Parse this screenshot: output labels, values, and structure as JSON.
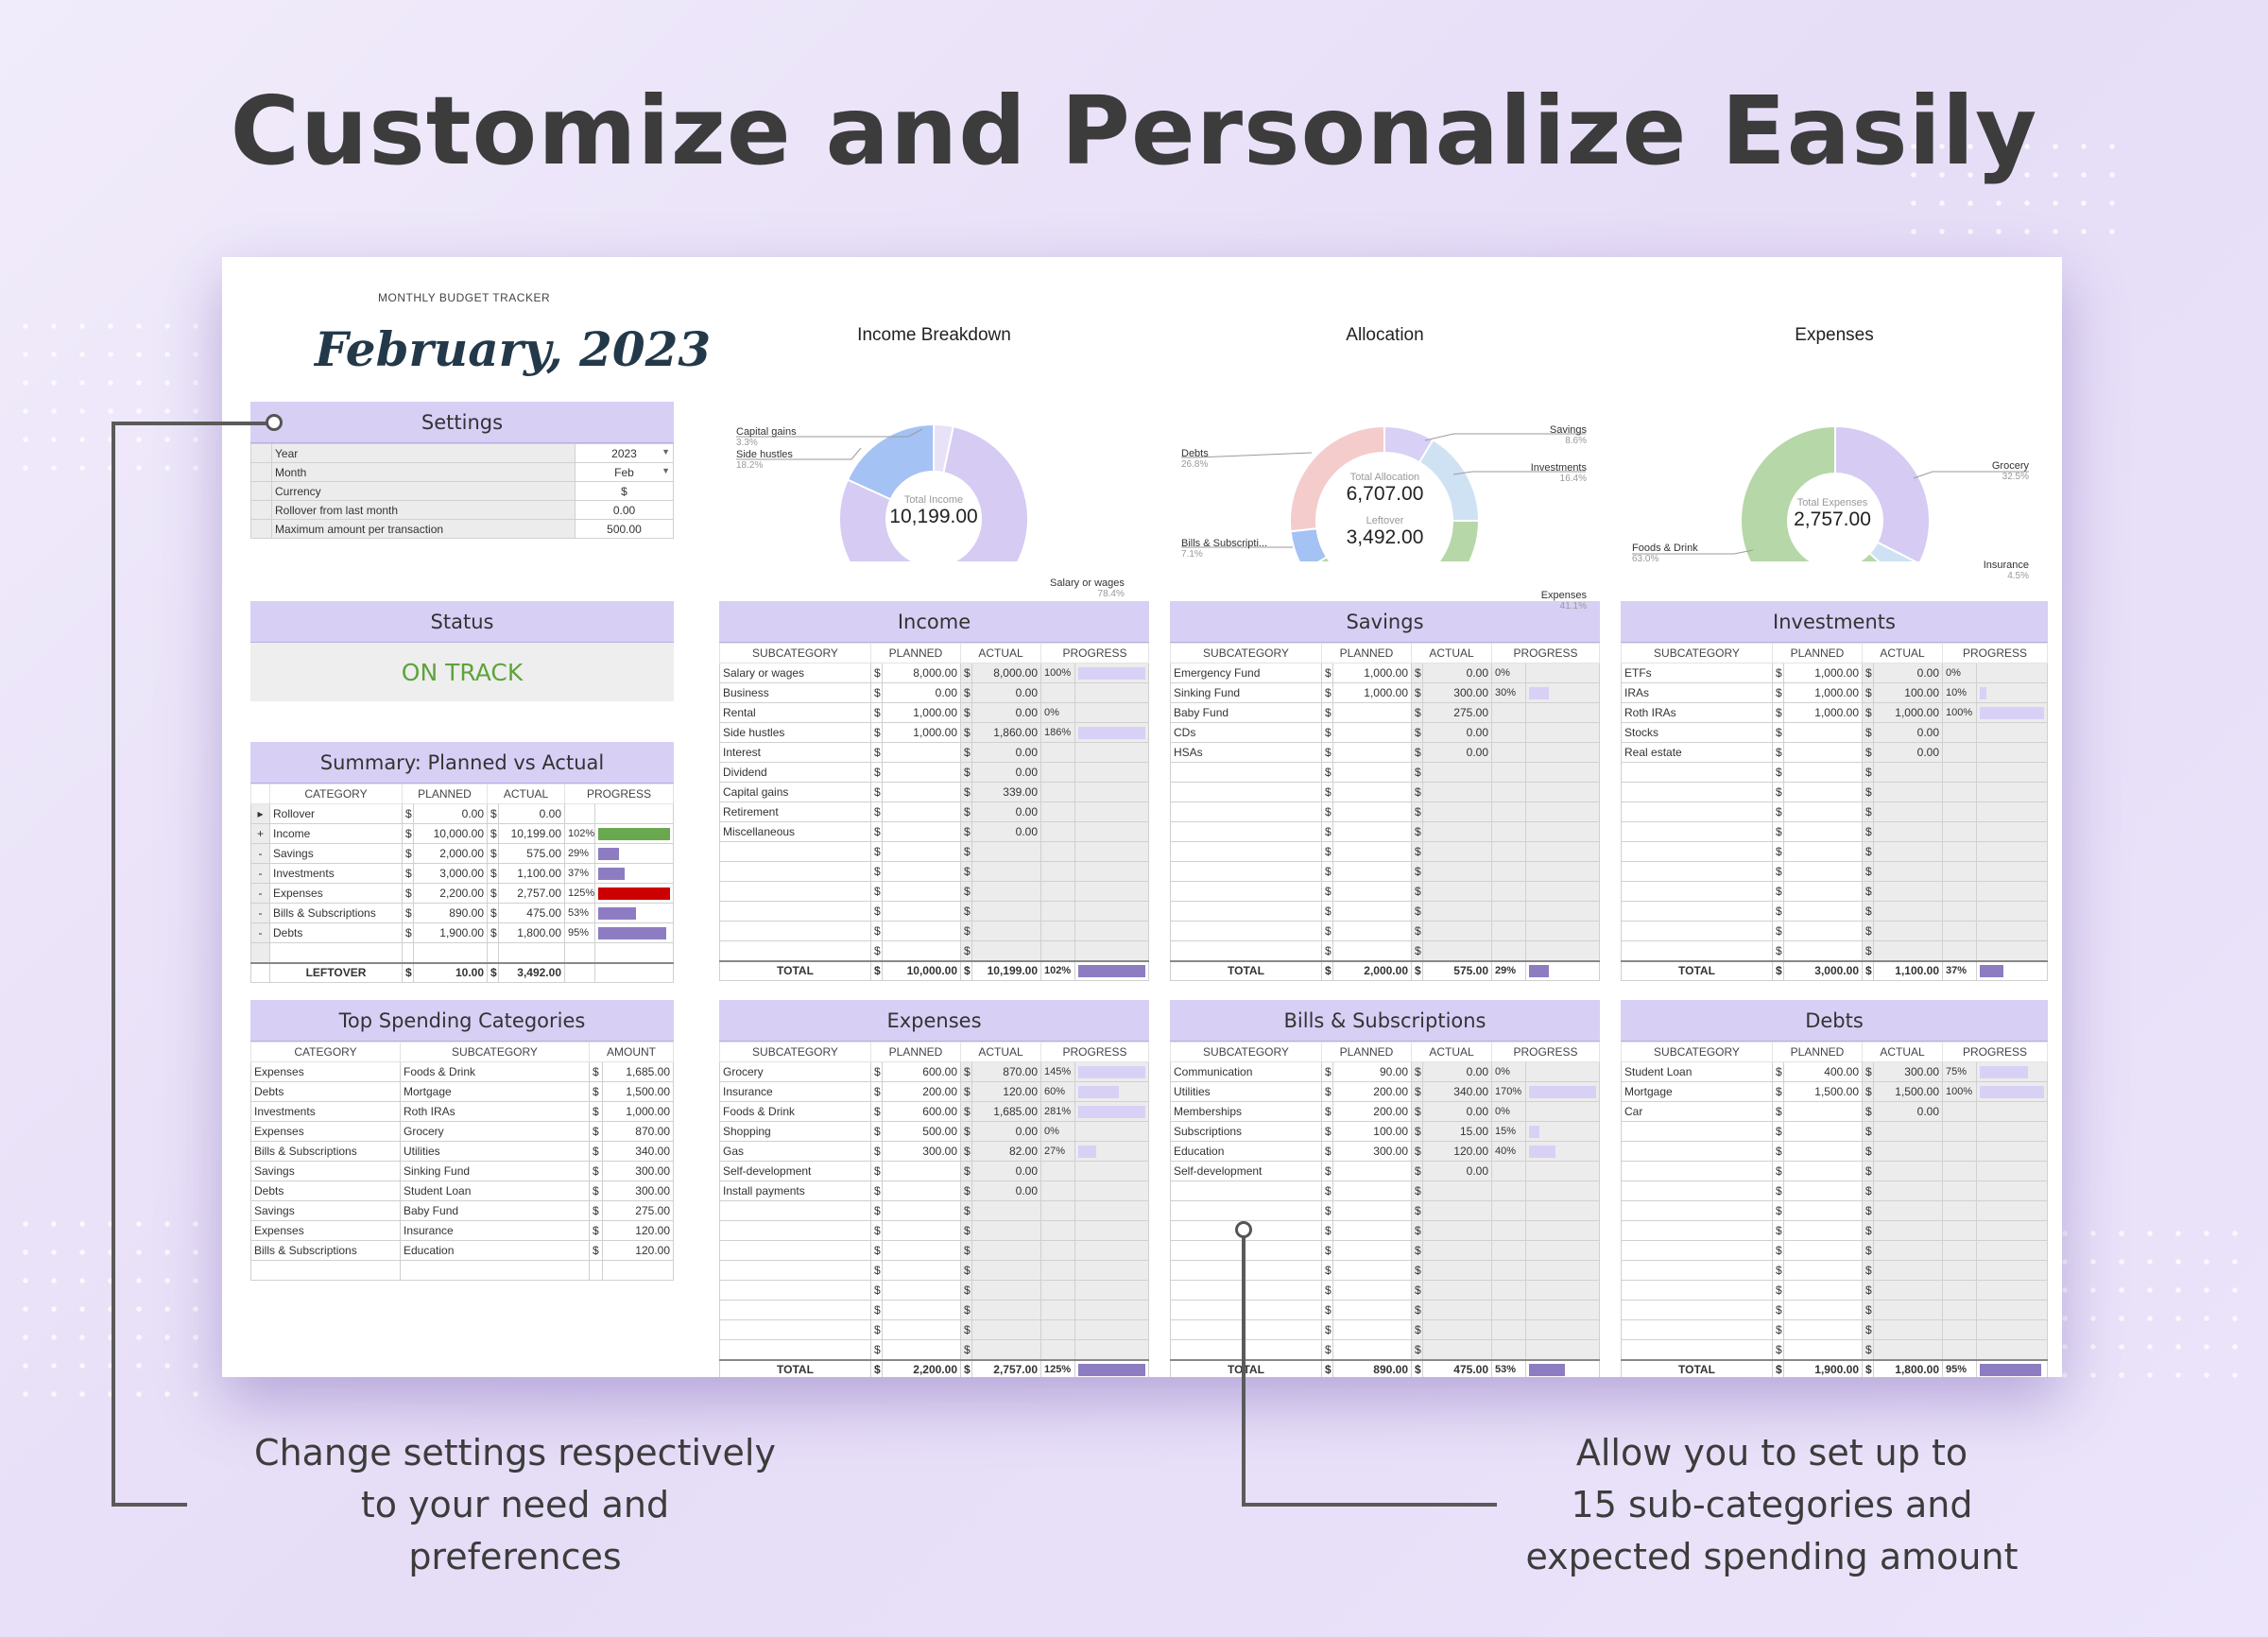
{
  "headline": "Customize and Personalize Easily",
  "tracker_label": "MONTHLY BUDGET TRACKER",
  "month_title": "February, 2023",
  "settings": {
    "title": "Settings",
    "rows": [
      {
        "label": "Year",
        "value": "2023",
        "dropdown": true
      },
      {
        "label": "Month",
        "value": "Feb",
        "dropdown": true
      },
      {
        "label": "Currency",
        "value": "$"
      },
      {
        "label": "Rollover from last month",
        "value": "0.00"
      },
      {
        "label": "Maximum amount per transaction",
        "value": "500.00"
      }
    ]
  },
  "status": {
    "title": "Status",
    "value": "ON TRACK"
  },
  "summary": {
    "title": "Summary: Planned vs Actual",
    "headers": [
      "CATEGORY",
      "PLANNED",
      "ACTUAL",
      "PROGRESS"
    ],
    "rows": [
      {
        "mark": "▸",
        "category": "Rollover",
        "planned": "0.00",
        "actual": "0.00",
        "pct": "",
        "fill": 0,
        "color": ""
      },
      {
        "mark": "+",
        "category": "Income",
        "planned": "10,000.00",
        "actual": "10,199.00",
        "pct": "102%",
        "fill": 1.0,
        "color": "#6aa84f"
      },
      {
        "mark": "-",
        "category": "Savings",
        "planned": "2,000.00",
        "actual": "575.00",
        "pct": "29%",
        "fill": 0.29,
        "color": "#8e7cc3"
      },
      {
        "mark": "-",
        "category": "Investments",
        "planned": "3,000.00",
        "actual": "1,100.00",
        "pct": "37%",
        "fill": 0.37,
        "color": "#8e7cc3"
      },
      {
        "mark": "-",
        "category": "Expenses",
        "planned": "2,200.00",
        "actual": "2,757.00",
        "pct": "125%",
        "fill": 1.0,
        "color": "#cc0000"
      },
      {
        "mark": "-",
        "category": "Bills & Subscriptions",
        "planned": "890.00",
        "actual": "475.00",
        "pct": "53%",
        "fill": 0.53,
        "color": "#8e7cc3"
      },
      {
        "mark": "-",
        "category": "Debts",
        "planned": "1,900.00",
        "actual": "1,800.00",
        "pct": "95%",
        "fill": 0.95,
        "color": "#8e7cc3"
      }
    ],
    "leftover_label": "LEFTOVER",
    "leftover_planned": "10.00",
    "leftover_actual": "3,492.00"
  },
  "top_spending": {
    "title": "Top Spending Categories",
    "headers": [
      "CATEGORY",
      "SUBCATEGORY",
      "AMOUNT"
    ],
    "rows": [
      {
        "category": "Expenses",
        "sub": "Foods & Drink",
        "amount": "1,685.00"
      },
      {
        "category": "Debts",
        "sub": "Mortgage",
        "amount": "1,500.00"
      },
      {
        "category": "Investments",
        "sub": "Roth IRAs",
        "amount": "1,000.00"
      },
      {
        "category": "Expenses",
        "sub": "Grocery",
        "amount": "870.00"
      },
      {
        "category": "Bills & Subscriptions",
        "sub": "Utilities",
        "amount": "340.00"
      },
      {
        "category": "Savings",
        "sub": "Sinking Fund",
        "amount": "300.00"
      },
      {
        "category": "Debts",
        "sub": "Student Loan",
        "amount": "300.00"
      },
      {
        "category": "Savings",
        "sub": "Baby Fund",
        "amount": "275.00"
      },
      {
        "category": "Expenses",
        "sub": "Insurance",
        "amount": "120.00"
      },
      {
        "category": "Bills & Subscriptions",
        "sub": "Education",
        "amount": "120.00"
      }
    ]
  },
  "currency_symbol": "$",
  "income": {
    "title": "Income",
    "headers": [
      "SUBCATEGORY",
      "PLANNED",
      "ACTUAL",
      "PROGRESS"
    ],
    "rows": [
      {
        "name": "Salary or wages",
        "planned": "8,000.00",
        "actual": "8,000.00",
        "pct": "100%",
        "fill": 1.0
      },
      {
        "name": "Business",
        "planned": "0.00",
        "actual": "0.00",
        "pct": "",
        "fill": 0
      },
      {
        "name": "Rental",
        "planned": "1,000.00",
        "actual": "0.00",
        "pct": "0%",
        "fill": 0
      },
      {
        "name": "Side hustles",
        "planned": "1,000.00",
        "actual": "1,860.00",
        "pct": "186%",
        "fill": 1.0
      },
      {
        "name": "Interest",
        "planned": "",
        "actual": "0.00",
        "pct": "",
        "fill": 0
      },
      {
        "name": "Dividend",
        "planned": "",
        "actual": "0.00",
        "pct": "",
        "fill": 0
      },
      {
        "name": "Capital gains",
        "planned": "",
        "actual": "339.00",
        "pct": "",
        "fill": 0
      },
      {
        "name": "Retirement",
        "planned": "",
        "actual": "0.00",
        "pct": "",
        "fill": 0
      },
      {
        "name": "Miscellaneous",
        "planned": "",
        "actual": "0.00",
        "pct": "",
        "fill": 0
      }
    ],
    "total": {
      "label": "TOTAL",
      "planned": "10,000.00",
      "actual": "10,199.00",
      "pct": "102%",
      "fill": 1.0
    }
  },
  "savings": {
    "title": "Savings",
    "headers": [
      "SUBCATEGORY",
      "PLANNED",
      "ACTUAL",
      "PROGRESS"
    ],
    "rows": [
      {
        "name": "Emergency Fund",
        "planned": "1,000.00",
        "actual": "0.00",
        "pct": "0%",
        "fill": 0
      },
      {
        "name": "Sinking Fund",
        "planned": "1,000.00",
        "actual": "300.00",
        "pct": "30%",
        "fill": 0.3
      },
      {
        "name": "Baby Fund",
        "planned": "",
        "actual": "275.00",
        "pct": "",
        "fill": 0
      },
      {
        "name": "CDs",
        "planned": "",
        "actual": "0.00",
        "pct": "",
        "fill": 0
      },
      {
        "name": "HSAs",
        "planned": "",
        "actual": "0.00",
        "pct": "",
        "fill": 0
      }
    ],
    "total": {
      "label": "TOTAL",
      "planned": "2,000.00",
      "actual": "575.00",
      "pct": "29%",
      "fill": 0.29
    }
  },
  "investments": {
    "title": "Investments",
    "headers": [
      "SUBCATEGORY",
      "PLANNED",
      "ACTUAL",
      "PROGRESS"
    ],
    "rows": [
      {
        "name": "ETFs",
        "planned": "1,000.00",
        "actual": "0.00",
        "pct": "0%",
        "fill": 0
      },
      {
        "name": "IRAs",
        "planned": "1,000.00",
        "actual": "100.00",
        "pct": "10%",
        "fill": 0.1
      },
      {
        "name": "Roth IRAs",
        "planned": "1,000.00",
        "actual": "1,000.00",
        "pct": "100%",
        "fill": 1.0
      },
      {
        "name": "Stocks",
        "planned": "",
        "actual": "0.00",
        "pct": "",
        "fill": 0
      },
      {
        "name": "Real estate",
        "planned": "",
        "actual": "0.00",
        "pct": "",
        "fill": 0
      }
    ],
    "total": {
      "label": "TOTAL",
      "planned": "3,000.00",
      "actual": "1,100.00",
      "pct": "37%",
      "fill": 0.37
    }
  },
  "expenses": {
    "title": "Expenses",
    "headers": [
      "SUBCATEGORY",
      "PLANNED",
      "ACTUAL",
      "PROGRESS"
    ],
    "rows": [
      {
        "name": "Grocery",
        "planned": "600.00",
        "actual": "870.00",
        "pct": "145%",
        "fill": 1.0
      },
      {
        "name": "Insurance",
        "planned": "200.00",
        "actual": "120.00",
        "pct": "60%",
        "fill": 0.6
      },
      {
        "name": "Foods & Drink",
        "planned": "600.00",
        "actual": "1,685.00",
        "pct": "281%",
        "fill": 1.0
      },
      {
        "name": "Shopping",
        "planned": "500.00",
        "actual": "0.00",
        "pct": "0%",
        "fill": 0
      },
      {
        "name": "Gas",
        "planned": "300.00",
        "actual": "82.00",
        "pct": "27%",
        "fill": 0.27
      },
      {
        "name": "Self-development",
        "planned": "",
        "actual": "0.00",
        "pct": "",
        "fill": 0
      },
      {
        "name": "Install payments",
        "planned": "",
        "actual": "0.00",
        "pct": "",
        "fill": 0
      }
    ],
    "total": {
      "label": "TOTAL",
      "planned": "2,200.00",
      "actual": "2,757.00",
      "pct": "125%",
      "fill": 1.0
    }
  },
  "bills": {
    "title": "Bills & Subscriptions",
    "headers": [
      "SUBCATEGORY",
      "PLANNED",
      "ACTUAL",
      "PROGRESS"
    ],
    "rows": [
      {
        "name": "Communication",
        "planned": "90.00",
        "actual": "0.00",
        "pct": "0%",
        "fill": 0
      },
      {
        "name": "Utilities",
        "planned": "200.00",
        "actual": "340.00",
        "pct": "170%",
        "fill": 1.0
      },
      {
        "name": "Memberships",
        "planned": "200.00",
        "actual": "0.00",
        "pct": "0%",
        "fill": 0
      },
      {
        "name": "Subscriptions",
        "planned": "100.00",
        "actual": "15.00",
        "pct": "15%",
        "fill": 0.15
      },
      {
        "name": "Education",
        "planned": "300.00",
        "actual": "120.00",
        "pct": "40%",
        "fill": 0.4
      },
      {
        "name": "Self-development",
        "planned": "",
        "actual": "0.00",
        "pct": "",
        "fill": 0
      }
    ],
    "total": {
      "label": "TOTAL",
      "planned": "890.00",
      "actual": "475.00",
      "pct": "53%",
      "fill": 0.53
    }
  },
  "debts": {
    "title": "Debts",
    "headers": [
      "SUBCATEGORY",
      "PLANNED",
      "ACTUAL",
      "PROGRESS"
    ],
    "rows": [
      {
        "name": "Student Loan",
        "planned": "400.00",
        "actual": "300.00",
        "pct": "75%",
        "fill": 0.75
      },
      {
        "name": "Mortgage",
        "planned": "1,500.00",
        "actual": "1,500.00",
        "pct": "100%",
        "fill": 1.0
      },
      {
        "name": "Car",
        "planned": "",
        "actual": "0.00",
        "pct": "",
        "fill": 0
      }
    ],
    "total": {
      "label": "TOTAL",
      "planned": "1,900.00",
      "actual": "1,800.00",
      "pct": "95%",
      "fill": 0.95
    }
  },
  "chart_data": [
    {
      "type": "pie",
      "title": "Income Breakdown",
      "center_label": "Total Income",
      "center_value": "10,199.00",
      "slices": [
        {
          "label": "Salary or wages",
          "pct": "78.4%",
          "value": 78.4,
          "color": "#d5cbf3"
        },
        {
          "label": "Side hustles",
          "pct": "18.2%",
          "value": 18.2,
          "color": "#a4c2f4"
        },
        {
          "label": "Capital gains",
          "pct": "3.3%",
          "value": 3.3,
          "color": "#e8e2f8"
        }
      ]
    },
    {
      "type": "pie",
      "title": "Allocation",
      "center_label": "Total Allocation",
      "center_value": "6,707.00",
      "center_label2": "Leftover",
      "center_value2": "3,492.00",
      "slices": [
        {
          "label": "Savings",
          "pct": "8.6%",
          "value": 8.6,
          "color": "#d9d0f5"
        },
        {
          "label": "Investments",
          "pct": "16.4%",
          "value": 16.4,
          "color": "#cfe2f3"
        },
        {
          "label": "Expenses",
          "pct": "41.1%",
          "value": 41.1,
          "color": "#b6d7a8"
        },
        {
          "label": "Bills & Subscripti...",
          "pct": "7.1%",
          "value": 7.1,
          "color": "#a4c2f4"
        },
        {
          "label": "Debts",
          "pct": "26.8%",
          "value": 26.8,
          "color": "#f4cccc"
        }
      ]
    },
    {
      "type": "pie",
      "title": "Expenses",
      "center_label": "Total Expenses",
      "center_value": "2,757.00",
      "slices": [
        {
          "label": "Grocery",
          "pct": "32.5%",
          "value": 32.5,
          "color": "#d5cbf3"
        },
        {
          "label": "Insurance",
          "pct": "4.5%",
          "value": 4.5,
          "color": "#cfe2f3"
        },
        {
          "label": "Foods & Drink",
          "pct": "63.0%",
          "value": 63.0,
          "color": "#b6d7a8"
        }
      ]
    }
  ],
  "notes": {
    "left": [
      "Change settings respectively",
      "to your need and",
      "preferences"
    ],
    "right": [
      "Allow you to set up to",
      "15 sub-categories and",
      "expected spending amount"
    ]
  },
  "colors": {
    "header_bg": "#d8cff5",
    "bar": "#8e7cc3",
    "bar_light": "#d9d0f5",
    "status": "#5ea33c"
  }
}
